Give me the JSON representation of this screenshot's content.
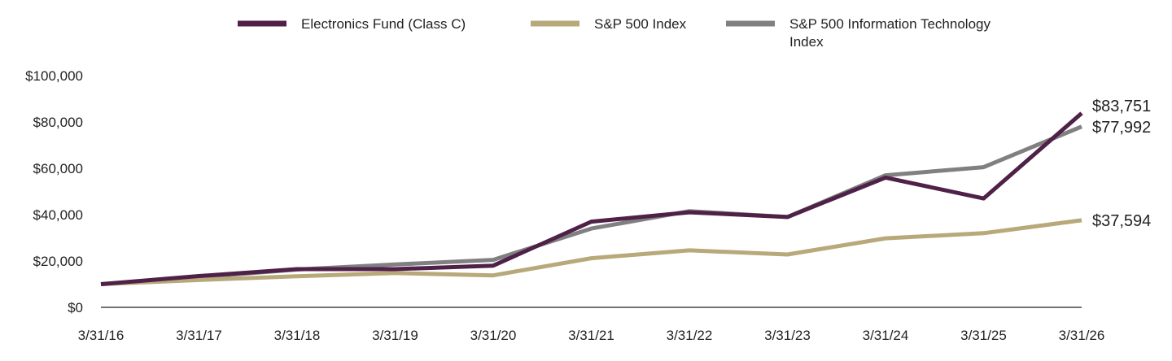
{
  "chart_data": {
    "type": "line",
    "title": "",
    "xlabel": "",
    "ylabel": "",
    "x": [
      "3/31/16",
      "3/31/17",
      "3/31/18",
      "3/31/19",
      "3/31/20",
      "3/31/21",
      "3/31/22",
      "3/31/23",
      "3/31/24",
      "3/31/25",
      "3/31/26"
    ],
    "ylim": [
      0,
      100000
    ],
    "yticks": [
      0,
      20000,
      40000,
      60000,
      80000,
      100000
    ],
    "ytick_labels": [
      "$0",
      "$20,000",
      "$40,000",
      "$60,000",
      "$80,000",
      "$100,000"
    ],
    "grid": false,
    "legend_position": "top",
    "series": [
      {
        "name": "S&P 500 Information Technology Index",
        "color": "#808083",
        "values": [
          10000,
          13000,
          16300,
          18500,
          20500,
          34000,
          41500,
          39000,
          57000,
          60500,
          77992
        ],
        "end_label": "$77,992"
      },
      {
        "name": "S&P 500 Index",
        "color": "#b8a97a",
        "values": [
          10000,
          11800,
          13400,
          14800,
          13800,
          21200,
          24600,
          22800,
          29800,
          32000,
          37594
        ],
        "end_label": "$37,594"
      },
      {
        "name": "Electronics Fund (Class C)",
        "color": "#4f2148",
        "values": [
          10000,
          13500,
          16500,
          16500,
          18000,
          37000,
          41000,
          39000,
          56000,
          47000,
          83751
        ],
        "end_label": "$83,751"
      }
    ],
    "legend_order": [
      2,
      1,
      0
    ]
  }
}
